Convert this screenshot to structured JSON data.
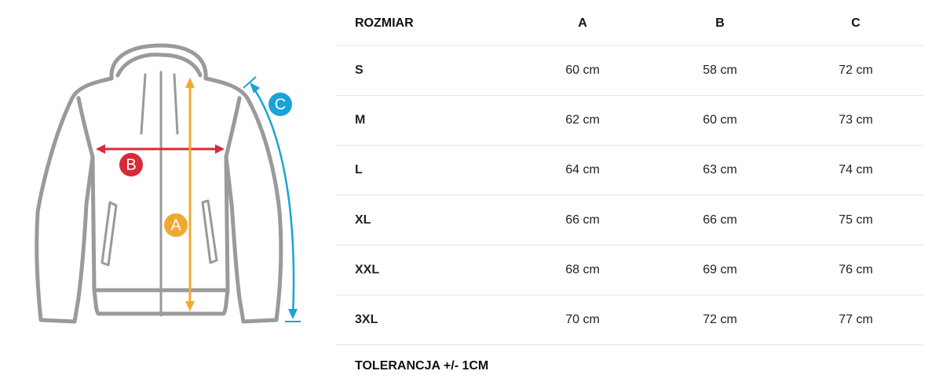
{
  "diagram": {
    "labels": [
      "A",
      "B",
      "C"
    ]
  },
  "table": {
    "header": [
      "ROZMIAR",
      "A",
      "B",
      "C"
    ],
    "rows": [
      [
        "S",
        "60 cm",
        "58 cm",
        "72 cm"
      ],
      [
        "M",
        "62 cm",
        "60 cm",
        "73 cm"
      ],
      [
        "L",
        "64 cm",
        "63 cm",
        "74 cm"
      ],
      [
        "XL",
        "66 cm",
        "66 cm",
        "75 cm"
      ],
      [
        "XXL",
        "68 cm",
        "69 cm",
        "76 cm"
      ],
      [
        "3XL",
        "70 cm",
        "72 cm",
        "77 cm"
      ]
    ]
  },
  "note": "TOLERANCJA +/- 1CM"
}
